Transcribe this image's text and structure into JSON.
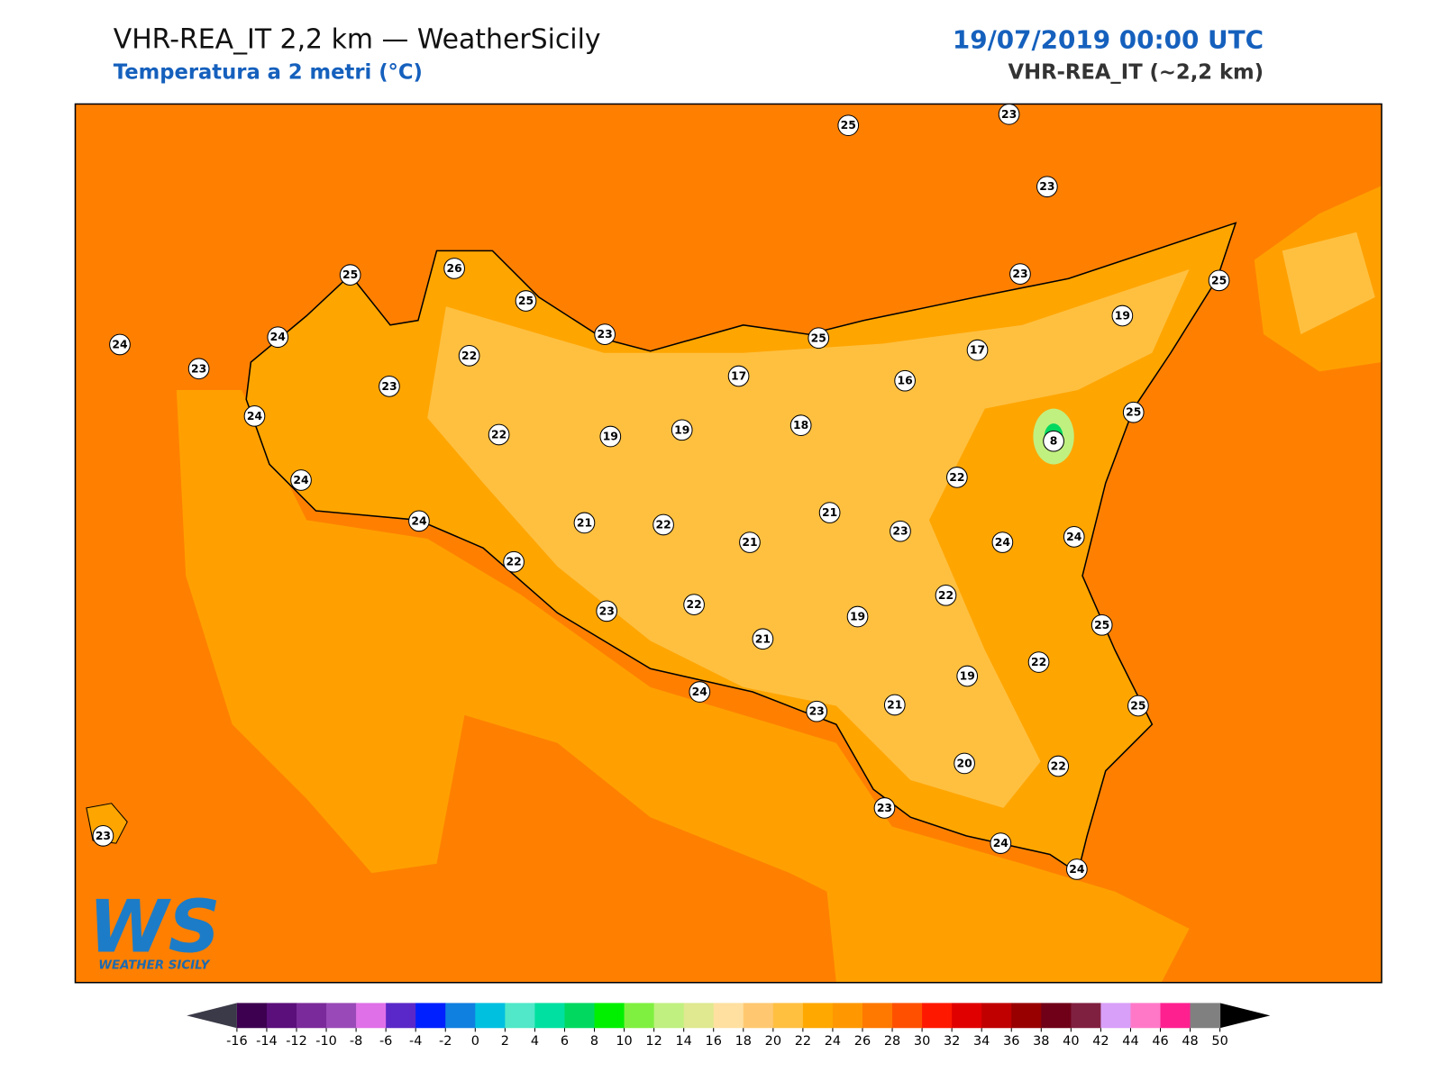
{
  "header": {
    "title": "VHR-REA_IT 2,2 km — WeatherSicily",
    "subtitle": "Temperatura a 2 metri (°C)",
    "datetime": "19/07/2019 00:00 UTC",
    "model": "VHR-REA_IT (~2,2 km)"
  },
  "stations": [
    25,
    23,
    23,
    25,
    26,
    25,
    23,
    24,
    23,
    24,
    22,
    23,
    24,
    22,
    19,
    19,
    17,
    18,
    25,
    16,
    17,
    23,
    19,
    25,
    25,
    8,
    22,
    24,
    24,
    23,
    21,
    21,
    22,
    21,
    24,
    24,
    22,
    23,
    22,
    21,
    19,
    22,
    25,
    22,
    19,
    21,
    23,
    24,
    25,
    22,
    20,
    23,
    24,
    24,
    23
  ],
  "colorbar": {
    "ticks": [
      -16,
      -14,
      -12,
      -10,
      -8,
      -6,
      -4,
      -2,
      0,
      2,
      4,
      6,
      8,
      10,
      12,
      14,
      16,
      18,
      20,
      22,
      24,
      26,
      28,
      30,
      32,
      34,
      36,
      38,
      40,
      42,
      44,
      46,
      48,
      50
    ],
    "colors": [
      "#3d0050",
      "#5a0f7a",
      "#7a2a9a",
      "#9a4ab8",
      "#e070e8",
      "#5a28c8",
      "#0020ff",
      "#1080e0",
      "#00c0e0",
      "#50e8c8",
      "#00e0a0",
      "#00d860",
      "#00f000",
      "#80f040",
      "#c0f080",
      "#e0e890",
      "#ffe0a0",
      "#ffc870",
      "#ffc040",
      "#ffa800",
      "#ff9800",
      "#ff7800",
      "#ff5000",
      "#ff1800",
      "#e00000",
      "#c00000",
      "#980000",
      "#700018",
      "#802040",
      "#d8a0f8",
      "#ff78c8",
      "#ff2090",
      "#808080"
    ],
    "under": "#3a3a48",
    "over": "#000000"
  },
  "logo": {
    "mark": "WS",
    "text": "WEATHER SICILY"
  }
}
